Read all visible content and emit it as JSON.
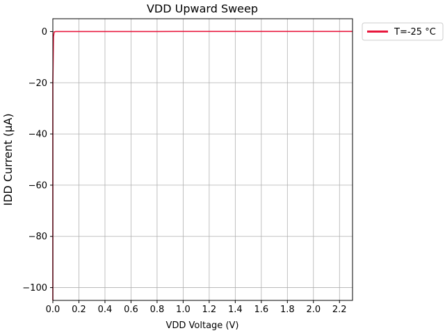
{
  "chart_data": {
    "type": "line",
    "title": "VDD Upward Sweep",
    "xlabel": "VDD Voltage (V)",
    "ylabel": "IDD Current (µA)",
    "xlim": [
      0.0,
      2.3
    ],
    "ylim": [
      -105,
      5
    ],
    "x_ticks": [
      0.0,
      0.2,
      0.4,
      0.6,
      0.8,
      1.0,
      1.2,
      1.4,
      1.6,
      1.8,
      2.0,
      2.2
    ],
    "x_tick_labels": [
      "0.0",
      "0.2",
      "0.4",
      "0.6",
      "0.8",
      "1.0",
      "1.2",
      "1.4",
      "1.6",
      "1.8",
      "2.0",
      "2.2"
    ],
    "y_ticks": [
      0,
      -20,
      -40,
      -60,
      -80,
      -100
    ],
    "y_tick_labels": [
      "0",
      "−20",
      "−40",
      "−60",
      "−80",
      "−100"
    ],
    "grid": true,
    "legend_placement": "outside-top-right",
    "series": [
      {
        "name": "T=-25 °C",
        "color": "#e8173c",
        "points": [
          [
            0.0,
            -105
          ],
          [
            0.0,
            -60
          ],
          [
            0.0,
            -20
          ],
          [
            0.005,
            -2
          ],
          [
            0.01,
            -0.2
          ],
          [
            0.02,
            0.0
          ],
          [
            0.1,
            0.0
          ],
          [
            0.3,
            0.0
          ],
          [
            0.5,
            0.0
          ],
          [
            0.8,
            0.0
          ],
          [
            1.0,
            0.05
          ],
          [
            1.2,
            0.05
          ],
          [
            1.4,
            0.05
          ],
          [
            1.6,
            0.05
          ],
          [
            1.8,
            0.05
          ],
          [
            2.0,
            0.05
          ],
          [
            2.2,
            0.05
          ],
          [
            2.3,
            0.05
          ]
        ]
      }
    ]
  }
}
